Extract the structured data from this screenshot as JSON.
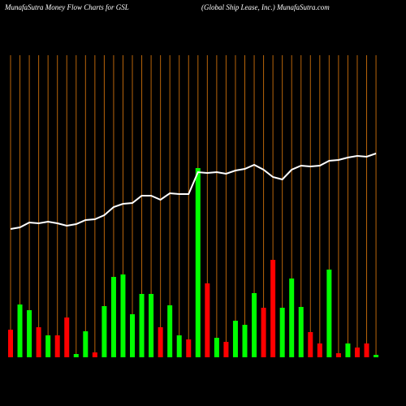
{
  "chart_data": {
    "type": "bar",
    "title": "MunafaSutra  Money Flow  Charts for GSL",
    "subtitle": "(Global Ship Lease, Inc.) MunafaSutra.com",
    "categories": [
      null,
      null,
      null,
      null,
      null,
      null,
      null,
      null,
      null,
      null,
      null,
      null,
      null,
      null,
      null,
      null,
      null,
      null,
      null,
      null,
      null,
      null,
      null,
      null,
      null,
      null,
      null,
      null,
      null,
      null,
      null,
      null,
      null,
      null,
      null,
      null,
      null,
      null,
      null,
      null
    ],
    "values": [
      34,
      65,
      58,
      37,
      27,
      27,
      49,
      4,
      32,
      6,
      63,
      99,
      102,
      53,
      78,
      78,
      37,
      64,
      27,
      22,
      233,
      91,
      24,
      19,
      45,
      40,
      79,
      61,
      120,
      61,
      97,
      62,
      31,
      17,
      108,
      5,
      17,
      12,
      17,
      3
    ],
    "colors": [
      "#ff0000",
      "#00ff00",
      "#00ff00",
      "#ff0000",
      "#00ff00",
      "#ff0000",
      "#ff0000",
      "#00ff00",
      "#00ff00",
      "#ff0000",
      "#00ff00",
      "#00ff00",
      "#00ff00",
      "#00ff00",
      "#00ff00",
      "#00ff00",
      "#ff0000",
      "#00ff00",
      "#00ff00",
      "#ff0000",
      "#00ff00",
      "#ff0000",
      "#00ff00",
      "#ff0000",
      "#00ff00",
      "#00ff00",
      "#00ff00",
      "#ff0000",
      "#ff0000",
      "#00ff00",
      "#00ff00",
      "#00ff00",
      "#ff0000",
      "#ff0000",
      "#00ff00",
      "#ff0000",
      "#00ff00",
      "#ff0000",
      "#ff0000",
      "#00ff00"
    ],
    "line": {
      "color": "#ffffff",
      "values": [
        158,
        160,
        166,
        165,
        167,
        165,
        162,
        164,
        169,
        170,
        175,
        185,
        189,
        190,
        199,
        199,
        194,
        202,
        201,
        201,
        228,
        227,
        228,
        226,
        230,
        232,
        237,
        231,
        222,
        219,
        231,
        236,
        235,
        236,
        242,
        243,
        246,
        248,
        247,
        251
      ]
    },
    "ylim": [
      0,
      440
    ],
    "grid_color": "#b8650a"
  }
}
